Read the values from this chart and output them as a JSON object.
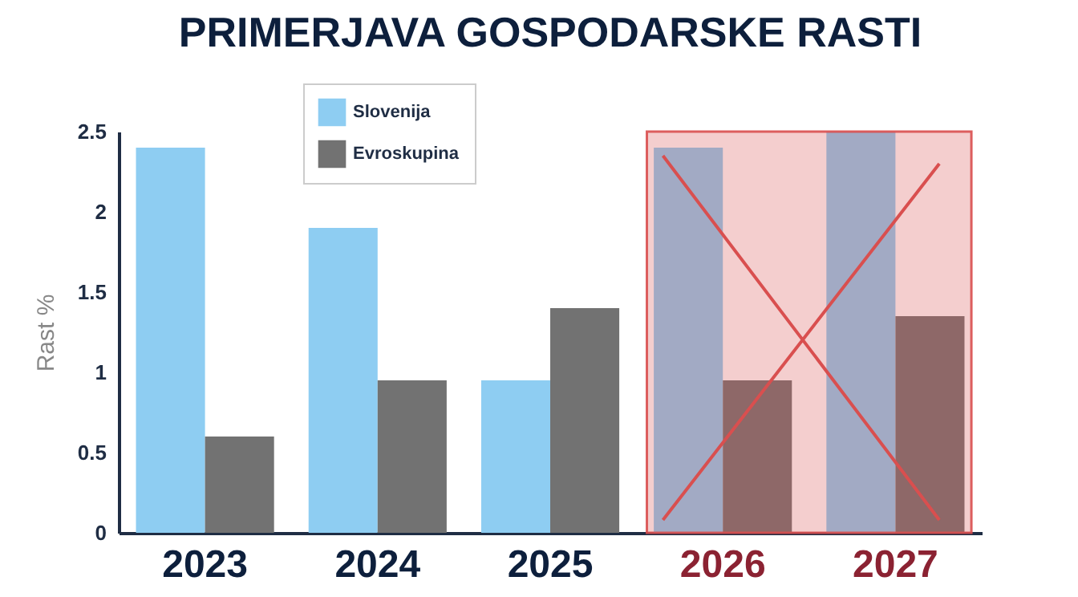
{
  "chart_data": {
    "type": "bar",
    "title": "PRIMERJAVA GOSPODARSKE RASTI",
    "ylabel": "Rast %",
    "categories": [
      "2023",
      "2024",
      "2025",
      "2026",
      "2027"
    ],
    "series": [
      {
        "name": "Slovenija",
        "color": "#8ecdf2",
        "values": [
          2.4,
          1.9,
          0.95,
          2.4,
          2.5
        ]
      },
      {
        "name": "Evroskupina",
        "color": "#727272",
        "values": [
          0.6,
          0.95,
          1.4,
          0.95,
          1.35
        ]
      }
    ],
    "ylim": [
      0,
      2.5
    ],
    "yticks": [
      0,
      0.5,
      1,
      1.5,
      2,
      2.5
    ],
    "grid": false,
    "legend": "top left",
    "bands": [
      {
        "axis": "x",
        "from": "2026",
        "to": "2027",
        "color": "#d94f4f"
      }
    ]
  }
}
